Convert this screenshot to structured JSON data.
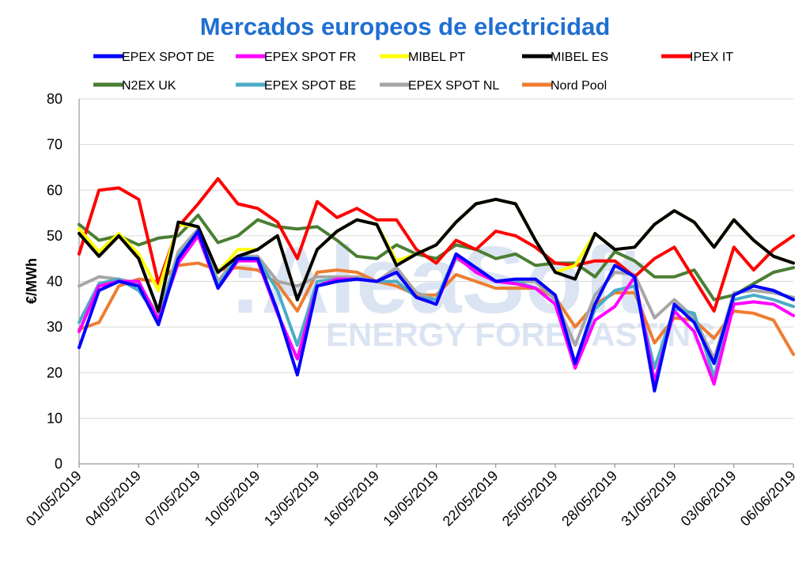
{
  "chart_data": {
    "type": "line",
    "title": "Mercados europeos de electricidad",
    "ylabel": "€/MWh",
    "ylim": [
      0,
      80
    ],
    "yticks": [
      "0",
      "10",
      "20",
      "30",
      "40",
      "50",
      "60",
      "70",
      "80"
    ],
    "grid": true,
    "legend_position": "top",
    "watermark": [
      ":AleaSoft",
      "ENERGY FORECASTING"
    ],
    "x": [
      "01/05/2019",
      "02/05/2019",
      "03/05/2019",
      "04/05/2019",
      "05/05/2019",
      "06/05/2019",
      "07/05/2019",
      "08/05/2019",
      "09/05/2019",
      "10/05/2019",
      "11/05/2019",
      "12/05/2019",
      "13/05/2019",
      "14/05/2019",
      "15/05/2019",
      "16/05/2019",
      "17/05/2019",
      "18/05/2019",
      "19/05/2019",
      "20/05/2019",
      "21/05/2019",
      "22/05/2019",
      "23/05/2019",
      "24/05/2019",
      "25/05/2019",
      "26/05/2019",
      "27/05/2019",
      "28/05/2019",
      "29/05/2019",
      "30/05/2019",
      "31/05/2019",
      "01/06/2019",
      "02/06/2019",
      "03/06/2019",
      "04/06/2019",
      "05/06/2019",
      "06/06/2019"
    ],
    "xtick_labels": [
      "01/05/2019",
      "04/05/2019",
      "07/05/2019",
      "10/05/2019",
      "13/05/2019",
      "16/05/2019",
      "19/05/2019",
      "22/05/2019",
      "25/05/2019",
      "28/05/2019",
      "31/05/2019",
      "03/06/2019",
      "06/06/2019"
    ],
    "series": [
      {
        "name": "EPEX SPOT DE",
        "color": "#0000ff",
        "values": [
          25.5,
          38,
          40,
          39,
          30.5,
          45,
          51,
          38.5,
          45,
          45,
          33.5,
          19.5,
          39,
          40,
          40.5,
          40,
          42,
          36.5,
          35,
          46,
          43,
          40,
          40.5,
          40.5,
          37,
          22,
          35,
          43.5,
          41,
          16,
          35,
          31,
          22,
          37,
          39,
          38,
          36
        ]
      },
      {
        "name": "EPEX SPOT FR",
        "color": "#ff00ff",
        "values": [
          29,
          39,
          40,
          40,
          31.5,
          44,
          50,
          38.5,
          44.5,
          44.5,
          33,
          23,
          39,
          40.5,
          40.5,
          40,
          42,
          36.5,
          35,
          45.5,
          42,
          40,
          39.5,
          38.5,
          35,
          21,
          31.5,
          34.5,
          41,
          18,
          33.5,
          29,
          17.5,
          35,
          35.5,
          35,
          32.5
        ]
      },
      {
        "name": "MIBEL PT",
        "color": "#ffff00",
        "values": [
          51.5,
          46.5,
          50.5,
          46,
          38,
          52.5,
          52,
          42,
          47,
          47,
          50,
          36,
          47,
          51,
          53.5,
          52.5,
          44.5,
          46,
          48,
          53,
          57,
          58,
          57,
          49,
          42,
          43.5,
          50.5,
          47,
          47.5,
          52.5,
          55.5,
          53,
          47.5,
          53.5,
          49,
          45.5,
          44
        ]
      },
      {
        "name": "MIBEL ES",
        "color": "#000000",
        "values": [
          50.5,
          45.5,
          50,
          45,
          33.5,
          53,
          52,
          42,
          45.5,
          47,
          50,
          36,
          47,
          51,
          53.5,
          52.5,
          43.5,
          46,
          48,
          53,
          57,
          58,
          57,
          49,
          42,
          40.5,
          50.5,
          47,
          47.5,
          52.5,
          55.5,
          53,
          47.5,
          53.5,
          49,
          45.5,
          44
        ]
      },
      {
        "name": "IPEX IT",
        "color": "#ff0000",
        "values": [
          46,
          60,
          60.5,
          58,
          39.5,
          52,
          57,
          62.5,
          57,
          56,
          53,
          45,
          57.5,
          54,
          56,
          53.5,
          53.5,
          47,
          44,
          49,
          47,
          51,
          50,
          47.5,
          44,
          43.5,
          44.5,
          44.5,
          41,
          45,
          47.5,
          40.5,
          33.5,
          47.5,
          42.5,
          47,
          50
        ]
      },
      {
        "name": "N2EX UK",
        "color": "#4a7f33",
        "values": [
          52.5,
          49,
          50,
          48,
          49.5,
          50,
          54.5,
          48.5,
          50,
          53.5,
          52,
          51.5,
          52,
          49,
          45.5,
          45,
          48,
          46,
          45,
          48,
          47,
          45,
          46,
          43.5,
          44,
          44,
          41,
          46.5,
          44.5,
          41,
          41,
          42.5,
          36,
          37,
          39.5,
          42,
          43
        ]
      },
      {
        "name": "EPEX SPOT BE",
        "color": "#4bacc6",
        "values": [
          31,
          39.5,
          40.5,
          38,
          32,
          45.5,
          51,
          39,
          45.5,
          45,
          38,
          26,
          40,
          40.5,
          40.5,
          40,
          40,
          36.5,
          36,
          46,
          43,
          40,
          40,
          38.5,
          35,
          21.5,
          34,
          38,
          39,
          21,
          34,
          33,
          19,
          36,
          37,
          36,
          34.5
        ]
      },
      {
        "name": "EPEX SPOT NL",
        "color": "#a6a6a6",
        "values": [
          39,
          41,
          40.5,
          39.5,
          32.5,
          46.5,
          51.5,
          40,
          45.5,
          45.5,
          40,
          39,
          41,
          41,
          41,
          40,
          43,
          37.5,
          36,
          45,
          42.5,
          40,
          40,
          40,
          36,
          26,
          37,
          42,
          41.5,
          32,
          36,
          32,
          23,
          37.5,
          38,
          37.5,
          36.5
        ]
      },
      {
        "name": "Nord Pool",
        "color": "#ed7d31",
        "values": [
          29.5,
          31,
          39,
          40.5,
          40,
          43.5,
          44,
          42.5,
          43,
          42.5,
          39.5,
          33.5,
          42,
          42.5,
          42,
          40,
          39,
          37,
          37,
          41.5,
          40,
          38.5,
          38.5,
          38.5,
          36.5,
          30,
          35,
          37.5,
          37.5,
          26.5,
          32,
          31.5,
          27.5,
          33.5,
          33,
          31.5,
          24
        ]
      }
    ]
  }
}
